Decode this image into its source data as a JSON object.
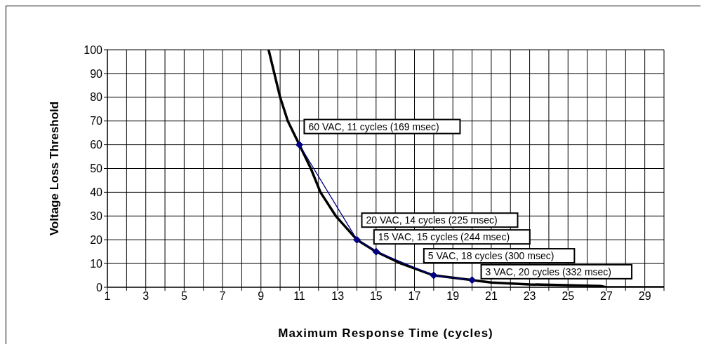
{
  "chart_data": {
    "type": "line",
    "xlabel": "Maximum Response Time (cycles)",
    "ylabel": "Voltage Loss Threshold",
    "xlim": [
      1,
      30
    ],
    "ylim": [
      0,
      100
    ],
    "xticks": [
      1,
      {
        "value": 2,
        "label": null
      },
      3,
      {
        "value": 4,
        "label": null
      },
      5,
      {
        "value": 6,
        "label": null
      },
      7,
      {
        "value": 8,
        "label": null
      },
      9,
      {
        "value": 10,
        "label": null
      },
      11,
      {
        "value": 12,
        "label": null
      },
      13,
      {
        "value": 14,
        "label": null
      },
      15,
      {
        "value": 16,
        "label": null
      },
      17,
      {
        "value": 18,
        "label": null
      },
      19,
      {
        "value": 20,
        "label": null
      },
      21,
      {
        "value": 22,
        "label": null
      },
      23,
      {
        "value": 24,
        "label": null
      },
      25,
      {
        "value": 26,
        "label": null
      },
      27,
      {
        "value": 28,
        "label": null
      },
      29,
      {
        "value": 30,
        "label": null
      }
    ],
    "yticks": [
      0,
      10,
      20,
      30,
      40,
      50,
      60,
      70,
      80,
      90,
      100
    ],
    "grid": true,
    "marker": "diamond",
    "line_style": "solid",
    "series": [
      {
        "color": "#000000",
        "marker": "none",
        "x": [
          9.4,
          10,
          10.4,
          11,
          11.6,
          12.1,
          12.9,
          14,
          15,
          16.3,
          18,
          20,
          21,
          23,
          26.7,
          27,
          30
        ],
        "values": [
          100,
          80,
          70,
          60,
          50,
          40,
          30,
          20,
          15,
          10,
          5,
          3,
          2,
          1.2,
          0.5,
          0,
          0
        ]
      },
      {
        "color": "#000080",
        "x": [
          11,
          14,
          15,
          18,
          20
        ],
        "values": [
          60,
          20,
          15,
          5,
          3
        ]
      }
    ],
    "annotations": [
      {
        "text": "60 VAC, 11 cycles (169 msec)",
        "x": 11,
        "y": 60
      },
      {
        "text": "20 VAC, 14 cycles (225 msec)",
        "x": 14,
        "y": 20
      },
      {
        "text": "15 VAC, 15 cycles (244 msec)",
        "x": 15,
        "y": 15
      },
      {
        "text": "5 VAC, 18 cycles (300 msec)",
        "x": 18,
        "y": 5
      },
      {
        "text": "3 VAC, 20 cycles (332 msec)",
        "x": 20,
        "y": 3
      }
    ]
  }
}
